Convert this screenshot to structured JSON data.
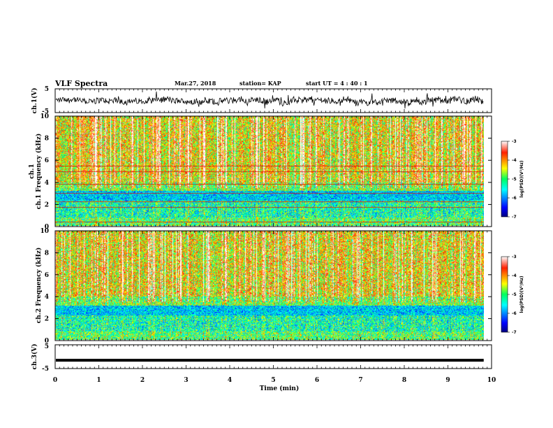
{
  "header": {
    "title": "VLF Spectra",
    "date": "Mar.27, 2018",
    "station": "station= KAP",
    "start": "start  UT  =   4  : 40 : 1"
  },
  "colors": {
    "spectrum_high": "#ff2000",
    "spectrum_mid": "#ffff00",
    "spectrum_low": "#00ff80",
    "spectrum_min": "#0000a0",
    "trace": "#000000"
  },
  "chart_data": [
    {
      "type": "line",
      "name": "ch.1 waveform",
      "ylabel": "ch.1(V)",
      "ylim": [
        -5,
        5
      ],
      "yticks": [
        "5",
        "-5"
      ],
      "xlim": [
        0,
        10
      ],
      "baseline": 0,
      "noise_amplitude": 2.5
    },
    {
      "type": "heatmap",
      "ylabel": "ch.1  Frequency  (kHz)",
      "ylim": [
        0,
        10
      ],
      "yticks": [
        "0",
        "2",
        "4",
        "6",
        "8",
        "10"
      ],
      "xlim": [
        0,
        10
      ],
      "band_lines_khz": [
        0.4,
        1.7,
        2.2,
        3.0,
        3.8,
        5.0,
        5.5
      ],
      "colorbar": {
        "label": "log(PSD)(V²/Hz)",
        "range": [
          -7,
          -3
        ],
        "ticks": [
          "-3",
          "-4",
          "-5",
          "-6",
          "-7"
        ]
      }
    },
    {
      "type": "heatmap",
      "ylabel": "ch.2  Frequency  (kHz)",
      "ylim": [
        0,
        10
      ],
      "yticks": [
        "0",
        "2",
        "4",
        "6",
        "8",
        "10"
      ],
      "xlim": [
        0,
        10
      ],
      "colorbar": {
        "label": "log(PSD)(V²/Hz)",
        "range": [
          -7,
          -3
        ],
        "ticks": [
          "-3",
          "-4",
          "-5",
          "-6",
          "-7"
        ]
      }
    },
    {
      "type": "line",
      "name": "ch.3 waveform",
      "ylabel": "ch.3(V)",
      "ylim": [
        -5,
        5
      ],
      "yticks": [
        "5",
        "-5"
      ],
      "xlim": [
        0,
        10
      ],
      "constant_value": -1.5
    }
  ],
  "xaxis": {
    "label": "Time  (min)",
    "ticks": [
      "0",
      "1",
      "2",
      "3",
      "4",
      "5",
      "6",
      "7",
      "8",
      "9",
      "10"
    ],
    "data_end": 9.82
  }
}
